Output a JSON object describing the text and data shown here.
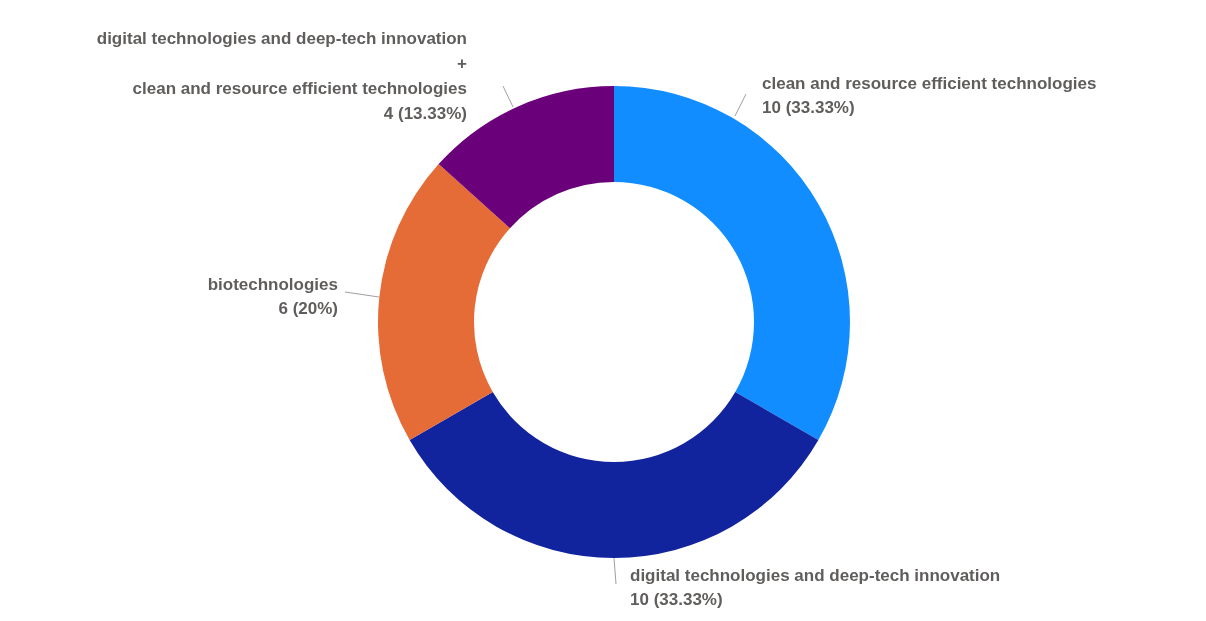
{
  "chart_data": {
    "type": "donut",
    "categories": [
      "clean and resource efficient technologies",
      "digital technologies and deep-tech innovation",
      "biotechnologies",
      "digital technologies and deep-tech innovation\n+\nclean and resource efficient technologies"
    ],
    "values": [
      10,
      10,
      6,
      4
    ],
    "colors": [
      "#118dff",
      "#12239e",
      "#e66c37",
      "#6b007b"
    ],
    "value_labels": [
      "10 (33.33%)",
      "10 (33.33%)",
      "6 (20%)",
      "4 (13.33%)"
    ],
    "legend": false
  }
}
